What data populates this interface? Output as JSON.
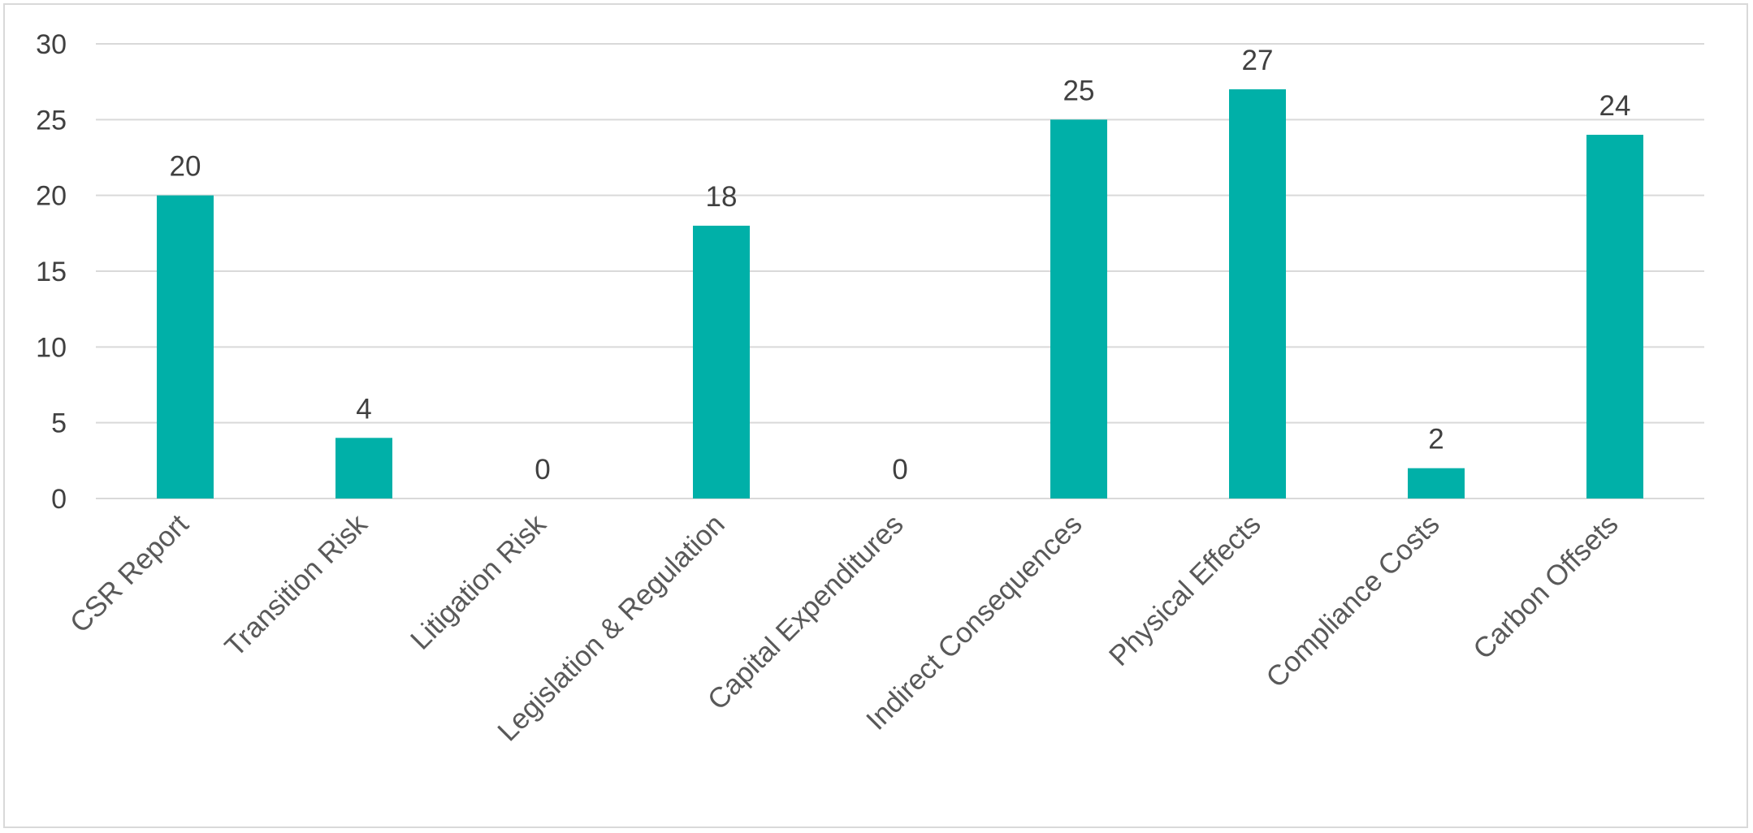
{
  "chart_data": {
    "type": "bar",
    "title": "",
    "xlabel": "",
    "ylabel": "",
    "categories": [
      "CSR Report",
      "Transition Risk",
      "Litigation Risk",
      "Legislation & Regulation",
      "Capital Expenditures",
      "Indirect Consequences",
      "Physical Effects",
      "Compliance Costs",
      "Carbon Offsets"
    ],
    "values": [
      20,
      4,
      0,
      18,
      0,
      25,
      27,
      2,
      24
    ],
    "ylim": [
      0,
      30
    ],
    "yticks": [
      0,
      5,
      10,
      15,
      20,
      25,
      30
    ],
    "grid": true,
    "legend": "none",
    "data_labels": true,
    "bar_color": "#00b0a8"
  }
}
